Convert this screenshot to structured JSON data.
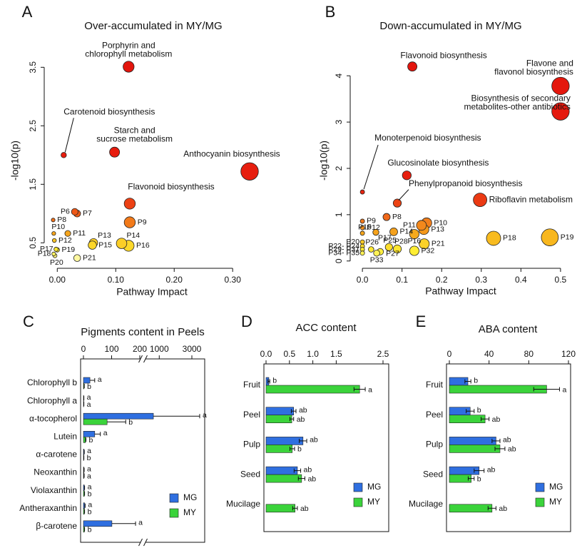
{
  "chart_data": [
    {
      "panel": "A",
      "type": "scatter",
      "title": "Over-accumulated in MY/MG",
      "x_label": "Pathway Impact",
      "y_label": "-log10(p)",
      "xlim": [
        -0.015,
        0.34
      ],
      "ylim": [
        0.15,
        3.65
      ],
      "xticks": [
        {
          "value": 0,
          "label": "0.00"
        },
        {
          "value": 0.1,
          "label": "0.10"
        },
        {
          "value": 0.2,
          "label": "0.20"
        },
        {
          "value": 0.3,
          "label": "0.30"
        }
      ],
      "yticks": [
        0.5,
        1.5,
        2.5,
        3.5
      ],
      "color_scale": {
        "stops": [
          0,
          0.06,
          0.13,
          0.22,
          0.35,
          1
        ],
        "colors": [
          "#fffff2",
          "#ffee33",
          "#f7b21c",
          "#f06a1a",
          "#e8200f",
          "#e3140d"
        ]
      },
      "x": [
        0.122,
        0.011,
        0.098,
        0.329,
        0.124,
        0.03,
        0.034,
        -0.007,
        0.124,
        -0.006,
        0.018,
        -0.005,
        0.062,
        0.11,
        0.06,
        0.122,
        -0.002,
        0.0,
        -0.006,
        -0.004,
        0.034
      ],
      "values": [
        3.51,
        2.0,
        2.05,
        1.72,
        1.17,
        1.03,
        1.0,
        0.89,
        0.85,
        0.66,
        0.66,
        0.54,
        0.5,
        0.49,
        0.46,
        0.45,
        0.39,
        0.38,
        0.31,
        0.28,
        0.24
      ],
      "labels": [
        [
          "Porphyrin and",
          "chlorophyll metabolism"
        ],
        "Carotenoid biosynthesis",
        [
          "Starch and",
          "sucrose metabolism"
        ],
        "Anthocyanin biosynthesis",
        "Flavonoid biosynthesis",
        "P6",
        "P7",
        "P8",
        "P9",
        "P10",
        "P11",
        "P12",
        "P13",
        "P14",
        "P15",
        "P16",
        "P17",
        "P19",
        "P18",
        "P20",
        "P21"
      ]
    },
    {
      "panel": "B",
      "type": "scatter",
      "title": "Down-accumulated in MY/MG",
      "x_label": "Pathway Impact",
      "y_label": "-log10(p)",
      "xlim": [
        -0.02,
        0.52
      ],
      "ylim": [
        -0.05,
        4.45
      ],
      "xticks": [
        {
          "value": 0,
          "label": "0.0"
        },
        0.1,
        0.2,
        0.3,
        0.4,
        0.5
      ],
      "yticks": [
        0,
        1,
        2,
        3,
        4
      ],
      "color_scale": {
        "stops": [
          0,
          0.06,
          0.13,
          0.22,
          0.35,
          1
        ],
        "colors": [
          "#fffff2",
          "#ffee33",
          "#f7b21c",
          "#f06a1a",
          "#e8200f",
          "#e3140d"
        ]
      },
      "x": [
        0.126,
        0.5,
        0.5,
        0.0,
        0.112,
        0.088,
        0.297,
        0.061,
        0.0,
        0.162,
        0.149,
        0.0,
        0.155,
        0.079,
        0.0,
        0.131,
        0.034,
        0.331,
        0.473,
        0.0,
        0.0,
        0.0,
        0.0,
        0.156,
        0.067,
        0.022,
        0.088,
        0.045,
        0.131,
        0.036
      ],
      "values": [
        4.2,
        3.78,
        3.23,
        1.49,
        1.85,
        1.25,
        1.32,
        0.95,
        0.86,
        0.82,
        0.77,
        0.72,
        0.68,
        0.63,
        0.6,
        0.58,
        0.62,
        0.49,
        0.51,
        0.41,
        0.32,
        0.25,
        0.17,
        0.37,
        0.3,
        0.25,
        0.26,
        0.2,
        0.22,
        0.17
      ],
      "labels": [
        "Flavonoid biosynthesis",
        [
          "Flavone and",
          "flavonol biosynthesis"
        ],
        [
          "Biosynthesis of secondary",
          "metabolites-other antibiotics"
        ],
        "Monoterpenoid biosynthesis",
        "Glucosinolate biosynthesis",
        "Phenylpropanoid biosynthesis",
        "Riboflavin metabolism",
        "P8",
        "P9",
        "P10",
        "P11",
        "P12",
        "P13",
        "P14",
        "P15",
        "P16",
        "P17",
        "P18",
        "P19",
        "P20",
        "P22- P24",
        "P29- P31",
        "P34- P35",
        "P21",
        "P25",
        "P26",
        "P28",
        "P27",
        "P32",
        "P33"
      ]
    },
    {
      "panel": "C",
      "type": "hbar",
      "title": "Pigments content in Peels",
      "xlim": [
        0,
        3700
      ],
      "x_break": 200,
      "error_bars": "upper",
      "xticks": [
        0,
        100,
        200,
        1000,
        3000
      ],
      "categories": [
        "Chlorophyll b",
        "Chlorophyll a",
        "α-tocopherol",
        "Lutein",
        "α-carotene",
        "Neoxanthin",
        "Violaxanthin",
        "Antheraxanthin",
        "β-carotene"
      ],
      "series": [
        {
          "name": "MG",
          "color": "#2f6fe0",
          "values": [
            23,
            1,
            640,
            40,
            2,
            1.5,
            3,
            4,
            101
          ],
          "errors": [
            17,
            0.5,
            2840,
            20,
            1,
            1,
            1,
            2,
            84
          ],
          "letters": [
            "a",
            "a",
            "a",
            "a",
            "a",
            "a",
            "a",
            "a",
            "a"
          ]
        },
        {
          "name": "MY",
          "color": "#3bd33b",
          "values": [
            2,
            1,
            84,
            7,
            1,
            1.5,
            3,
            3,
            3
          ],
          "errors": [
            1,
            0.5,
            66,
            2,
            0.5,
            1,
            1,
            1,
            1
          ],
          "letters": [
            "b",
            "a",
            "b",
            "b",
            "b",
            "a",
            "b",
            "b",
            "b"
          ]
        }
      ]
    },
    {
      "panel": "D",
      "type": "hbar",
      "title": "ACC content",
      "xlim": [
        0,
        2.5
      ],
      "error_bars": "both",
      "xticks": [
        {
          "value": 0,
          "label": "0.0"
        },
        0.5,
        {
          "value": 1,
          "label": "1.0"
        },
        1.5,
        2.5
      ],
      "categories": [
        "Fruit",
        "Peel",
        "Pulp",
        "Seed",
        "Mucilage"
      ],
      "series": [
        {
          "name": "MG",
          "color": "#2f6fe0",
          "values": [
            0.06,
            0.59,
            0.79,
            0.67,
            null
          ],
          "errors": [
            0.02,
            0.05,
            0.08,
            0.07,
            null
          ],
          "letters": [
            "b",
            "ab",
            "ab",
            "ab",
            null
          ]
        },
        {
          "name": "MY",
          "color": "#3bd33b",
          "values": [
            2.0,
            0.55,
            0.56,
            0.76,
            0.62
          ],
          "errors": [
            0.12,
            0.04,
            0.05,
            0.07,
            0.05
          ],
          "letters": [
            "a",
            "ab",
            "b",
            "ab",
            "ab"
          ]
        }
      ]
    },
    {
      "panel": "E",
      "type": "hbar",
      "title": "ABA content",
      "xlim": [
        0,
        120
      ],
      "error_bars": "both",
      "xticks": [
        0,
        40,
        80,
        120
      ],
      "categories": [
        "Fruit",
        "Peel",
        "Pulp",
        "Seed",
        "Mucilage"
      ],
      "series": [
        {
          "name": "MG",
          "color": "#2f6fe0",
          "values": [
            18.7,
            21,
            47,
            30,
            null
          ],
          "errors": [
            3,
            4,
            4,
            5,
            null
          ],
          "letters": [
            "b",
            "b",
            "ab",
            "ab",
            null
          ]
        },
        {
          "name": "MY",
          "color": "#3bd33b",
          "values": [
            98,
            36,
            51,
            22,
            43
          ],
          "errors": [
            13,
            4,
            5,
            3,
            4
          ],
          "letters": [
            "a",
            "ab",
            "ab",
            "b",
            "ab"
          ]
        }
      ]
    }
  ]
}
